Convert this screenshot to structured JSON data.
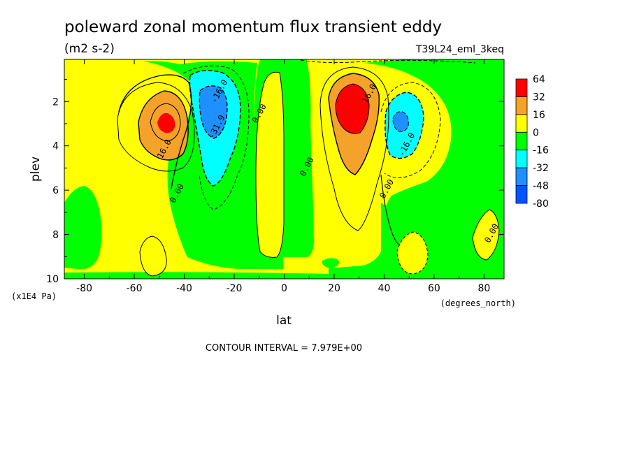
{
  "chart_data": {
    "type": "heatmap",
    "title": "poleward zonal momentum flux transient eddy",
    "subtitle_units": "(m2 s-2)",
    "run_label": "T39L24_eml_3keq",
    "xlabel": "lat",
    "x_units": "(degrees_north)",
    "ylabel": "plev",
    "y_units": "(x1E4 Pa)",
    "xlim": [
      -88,
      88
    ],
    "ylim": [
      0.1,
      10
    ],
    "x_ticks": [
      -80,
      -60,
      -40,
      -20,
      0,
      20,
      40,
      60,
      80
    ],
    "x_tick_labels": [
      "-80",
      "-60",
      "-40",
      "-20",
      "0",
      "20",
      "40",
      "60",
      "80"
    ],
    "y_ticks": [
      2,
      4,
      6,
      8,
      10
    ],
    "y_tick_labels": [
      "2",
      "4",
      "6",
      "8",
      "10"
    ],
    "contour_interval_text": "CONTOUR INTERVAL = 7.979E+00",
    "colorbar": {
      "labels": [
        "64",
        "32",
        "16",
        "0",
        "-16",
        "-32",
        "-48",
        "-80"
      ],
      "colors": [
        "#ff0000",
        "#f5a22a",
        "#ffff00",
        "#00ff00",
        "#00ffff",
        "#1e90ff",
        "#0055ff"
      ]
    },
    "field_features": [
      {
        "kind": "max",
        "lat": -47,
        "plev": 3.0,
        "value": 45
      },
      {
        "kind": "min",
        "lat": -29,
        "plev": 2.4,
        "value": -52
      },
      {
        "kind": "max",
        "lat": 28,
        "plev": 2.5,
        "value": 60
      },
      {
        "kind": "min",
        "lat": 46,
        "plev": 3.0,
        "value": -42
      }
    ],
    "contour_labels": [
      {
        "text": "16.0",
        "lat": -47,
        "plev": 4.2
      },
      {
        "text": "-16.0",
        "lat": -25,
        "plev": 1.6
      },
      {
        "text": "-31.9",
        "lat": -26,
        "plev": 3.2
      },
      {
        "text": "0.00",
        "lat": -9,
        "plev": 2.6
      },
      {
        "text": "0.00",
        "lat": -42,
        "plev": 6.2
      },
      {
        "text": "0.00",
        "lat": 10,
        "plev": 5.0
      },
      {
        "text": "16.0",
        "lat": 35,
        "plev": 1.7
      },
      {
        "text": "-16.0",
        "lat": 50,
        "plev": 4.0
      },
      {
        "text": "0.00",
        "lat": 42,
        "plev": 6.0
      },
      {
        "text": "0.00",
        "lat": 84,
        "plev": 8.0
      }
    ]
  }
}
